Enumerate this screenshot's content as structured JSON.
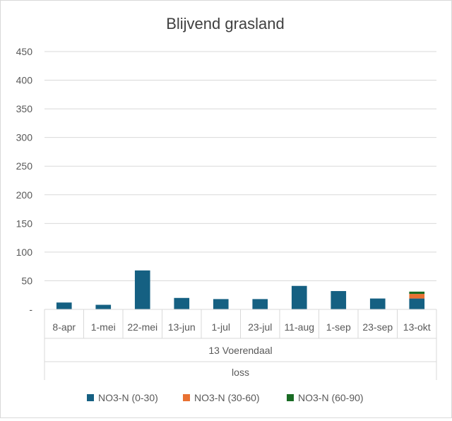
{
  "chart_data": {
    "type": "bar",
    "stacked": true,
    "title": "Blijvend grasland",
    "categories": [
      "8-apr",
      "1-mei",
      "22-mei",
      "13-jun",
      "1-jul",
      "23-jul",
      "11-aug",
      "1-sep",
      "23-sep",
      "13-okt"
    ],
    "group_labels": [
      "13 Voerendaal",
      "loss"
    ],
    "y_ticks": [
      "-",
      "50",
      "100",
      "150",
      "200",
      "250",
      "300",
      "350",
      "400",
      "450"
    ],
    "ylim": [
      0,
      450
    ],
    "grid": true,
    "legend_position": "bottom",
    "series": [
      {
        "name": "NO3-N (0-30)",
        "color": "#156082",
        "values": [
          12,
          8,
          68,
          20,
          18,
          18,
          41,
          32,
          19,
          19
        ]
      },
      {
        "name": "NO3-N (30-60)",
        "color": "#e97132",
        "values": [
          0,
          0,
          0,
          0,
          0,
          0,
          0,
          0,
          0,
          8
        ]
      },
      {
        "name": "NO3-N (60-90)",
        "color": "#196b24",
        "values": [
          0,
          0,
          0,
          0,
          0,
          0,
          0,
          0,
          0,
          4
        ]
      }
    ]
  }
}
